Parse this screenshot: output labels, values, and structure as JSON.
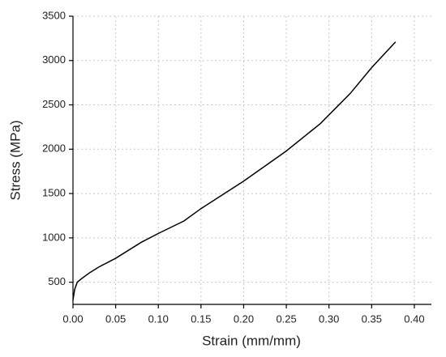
{
  "chart_data": {
    "type": "line",
    "x_label": "Strain (mm/mm)",
    "y_label": "Stress (MPa)",
    "x": [
      0.0,
      0.002,
      0.005,
      0.01,
      0.02,
      0.03,
      0.05,
      0.08,
      0.1,
      0.13,
      0.15,
      0.2,
      0.25,
      0.29,
      0.325,
      0.35,
      0.378
    ],
    "series": [
      {
        "color": "#000000",
        "values": [
          300,
          420,
          500,
          540,
          610,
          670,
          770,
          950,
          1050,
          1190,
          1330,
          1640,
          1980,
          2290,
          2630,
          2920,
          3210
        ]
      }
    ],
    "xlim": [
      0,
      0.42
    ],
    "ylim": [
      250,
      3500
    ],
    "xticks": [
      {
        "value": 0,
        "label": "0.00"
      },
      {
        "value": 0.05,
        "label": "0.05"
      },
      {
        "value": 0.1,
        "label": "0.10"
      },
      {
        "value": 0.15,
        "label": "0.15"
      },
      {
        "value": 0.2,
        "label": "0.20"
      },
      {
        "value": 0.25,
        "label": "0.25"
      },
      {
        "value": 0.3,
        "label": "0.30"
      },
      {
        "value": 0.35,
        "label": "0.35"
      },
      {
        "value": 0.4,
        "label": "0.40"
      }
    ],
    "yticks": [
      500,
      1000,
      1500,
      2000,
      2500,
      3000,
      3500
    ],
    "grid": true
  }
}
